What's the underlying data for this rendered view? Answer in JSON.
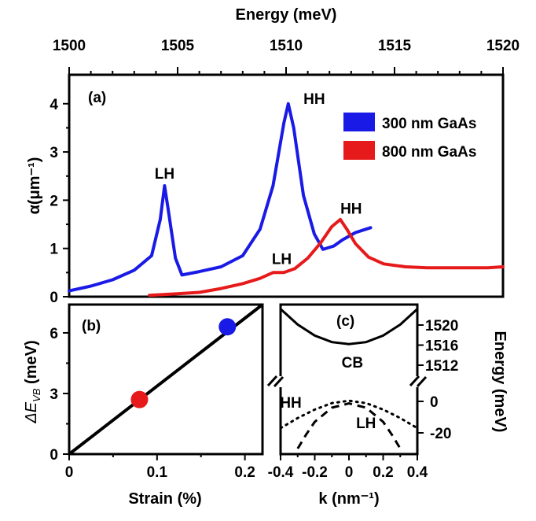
{
  "chart_data": [
    {
      "panel": "(a)",
      "type": "line",
      "xlabel": "Energy (meV)",
      "ylabel": "α(μm⁻¹)",
      "xlim": [
        1500,
        1520
      ],
      "ylim": [
        0,
        4.6
      ],
      "xticks": [
        "1500",
        "1505",
        "1510",
        "1515",
        "1520"
      ],
      "yticks": [
        "0",
        "1",
        "2",
        "3",
        "4"
      ],
      "legend": "top-right",
      "grid": false,
      "series": [
        {
          "name": "300 nm GaAs",
          "color": "#1a1ae6",
          "points": [
            [
              1500,
              0.12
            ],
            [
              1501,
              0.22
            ],
            [
              1502,
              0.35
            ],
            [
              1503,
              0.55
            ],
            [
              1503.8,
              0.85
            ],
            [
              1504.2,
              1.6
            ],
            [
              1504.4,
              2.3
            ],
            [
              1504.6,
              1.7
            ],
            [
              1504.9,
              0.8
            ],
            [
              1505.2,
              0.45
            ],
            [
              1506,
              0.52
            ],
            [
              1507,
              0.62
            ],
            [
              1508,
              0.85
            ],
            [
              1508.8,
              1.4
            ],
            [
              1509.4,
              2.3
            ],
            [
              1509.9,
              3.6
            ],
            [
              1510.1,
              4.0
            ],
            [
              1510.35,
              3.5
            ],
            [
              1510.8,
              2.1
            ],
            [
              1511.3,
              1.3
            ],
            [
              1511.7,
              0.98
            ],
            [
              1512.2,
              1.05
            ],
            [
              1512.6,
              1.18
            ],
            [
              1513.2,
              1.33
            ],
            [
              1513.9,
              1.43
            ]
          ]
        },
        {
          "name": "800 nm GaAs",
          "color": "#e61a1a",
          "points": [
            [
              1503.7,
              0.03
            ],
            [
              1505,
              0.06
            ],
            [
              1506,
              0.09
            ],
            [
              1507,
              0.17
            ],
            [
              1508,
              0.27
            ],
            [
              1508.8,
              0.38
            ],
            [
              1509.4,
              0.5
            ],
            [
              1509.9,
              0.5
            ],
            [
              1510.4,
              0.58
            ],
            [
              1511,
              0.8
            ],
            [
              1511.6,
              1.12
            ],
            [
              1512.1,
              1.45
            ],
            [
              1512.5,
              1.6
            ],
            [
              1512.8,
              1.4
            ],
            [
              1513.2,
              1.1
            ],
            [
              1513.8,
              0.82
            ],
            [
              1514.5,
              0.68
            ],
            [
              1515.5,
              0.62
            ],
            [
              1516.5,
              0.6
            ],
            [
              1517.5,
              0.6
            ],
            [
              1518.5,
              0.6
            ],
            [
              1519.3,
              0.6
            ],
            [
              1520,
              0.62
            ]
          ]
        }
      ],
      "annotations": [
        {
          "text": "LH",
          "x": 1504.4,
          "y": 2.45
        },
        {
          "text": "HH",
          "x": 1511.3,
          "y": 4.0
        },
        {
          "text": "LH",
          "x": 1509.8,
          "y": 0.68
        },
        {
          "text": "HH",
          "x": 1513.0,
          "y": 1.72
        }
      ]
    },
    {
      "panel": "(b)",
      "type": "scatter",
      "xlabel": "Strain (%)",
      "ylabel": "ΔE_VB (meV)",
      "xlim": [
        0,
        0.22
      ],
      "ylim": [
        0,
        7.4
      ],
      "xticks": [
        "0",
        "0.1",
        "0.2"
      ],
      "yticks": [
        "0",
        "3",
        "6"
      ],
      "fit_line": [
        [
          0,
          0
        ],
        [
          0.22,
          7.6
        ]
      ],
      "points": [
        {
          "x": 0.08,
          "y": 2.7,
          "color": "#e61a1a"
        },
        {
          "x": 0.18,
          "y": 6.3,
          "color": "#1a1ae6"
        }
      ]
    },
    {
      "panel": "(c)",
      "type": "line",
      "xlabel": "k (nm⁻¹)",
      "ylabel": "Energy (meV)",
      "xlim": [
        -0.4,
        0.4
      ],
      "xticks": [
        "-0.4",
        "-0.2",
        "0",
        "0.2",
        "0.4"
      ],
      "yticks_upper": [
        "1520",
        "1516",
        "1512"
      ],
      "yticks_lower": [
        "0",
        "-20"
      ],
      "broken_axis": true,
      "series": [
        {
          "name": "CB",
          "style": "solid",
          "band": "upper",
          "k": [
            -0.4,
            -0.3,
            -0.2,
            -0.1,
            0,
            0.1,
            0.2,
            0.3,
            0.4
          ],
          "E": [
            1523.2,
            1520.1,
            1517.9,
            1516.6,
            1516.2,
            1516.6,
            1517.9,
            1520.1,
            1523.2
          ]
        },
        {
          "name": "HH",
          "style": "dotted",
          "band": "lower",
          "k": [
            -0.4,
            -0.3,
            -0.2,
            -0.1,
            0,
            0.1,
            0.2,
            0.3,
            0.4
          ],
          "E": [
            -17,
            -10.6,
            -5.2,
            -1.1,
            0.4,
            -1.1,
            -5.2,
            -10.6,
            -17
          ]
        },
        {
          "name": "LH",
          "style": "dashed",
          "band": "lower",
          "k": [
            -0.3,
            -0.25,
            -0.2,
            -0.1,
            0,
            0.1,
            0.2,
            0.25,
            0.3
          ],
          "E": [
            -30,
            -21,
            -13,
            -4,
            -1.3,
            -4,
            -13,
            -21,
            -30
          ]
        }
      ],
      "annotations": [
        {
          "text": "CB",
          "x": 0.02,
          "y": 1511.5,
          "band": "upper"
        },
        {
          "text": "HH",
          "x": -0.34,
          "y": -4,
          "band": "lower"
        },
        {
          "text": "LH",
          "x": 0.1,
          "y": -17,
          "band": "lower"
        }
      ]
    }
  ]
}
